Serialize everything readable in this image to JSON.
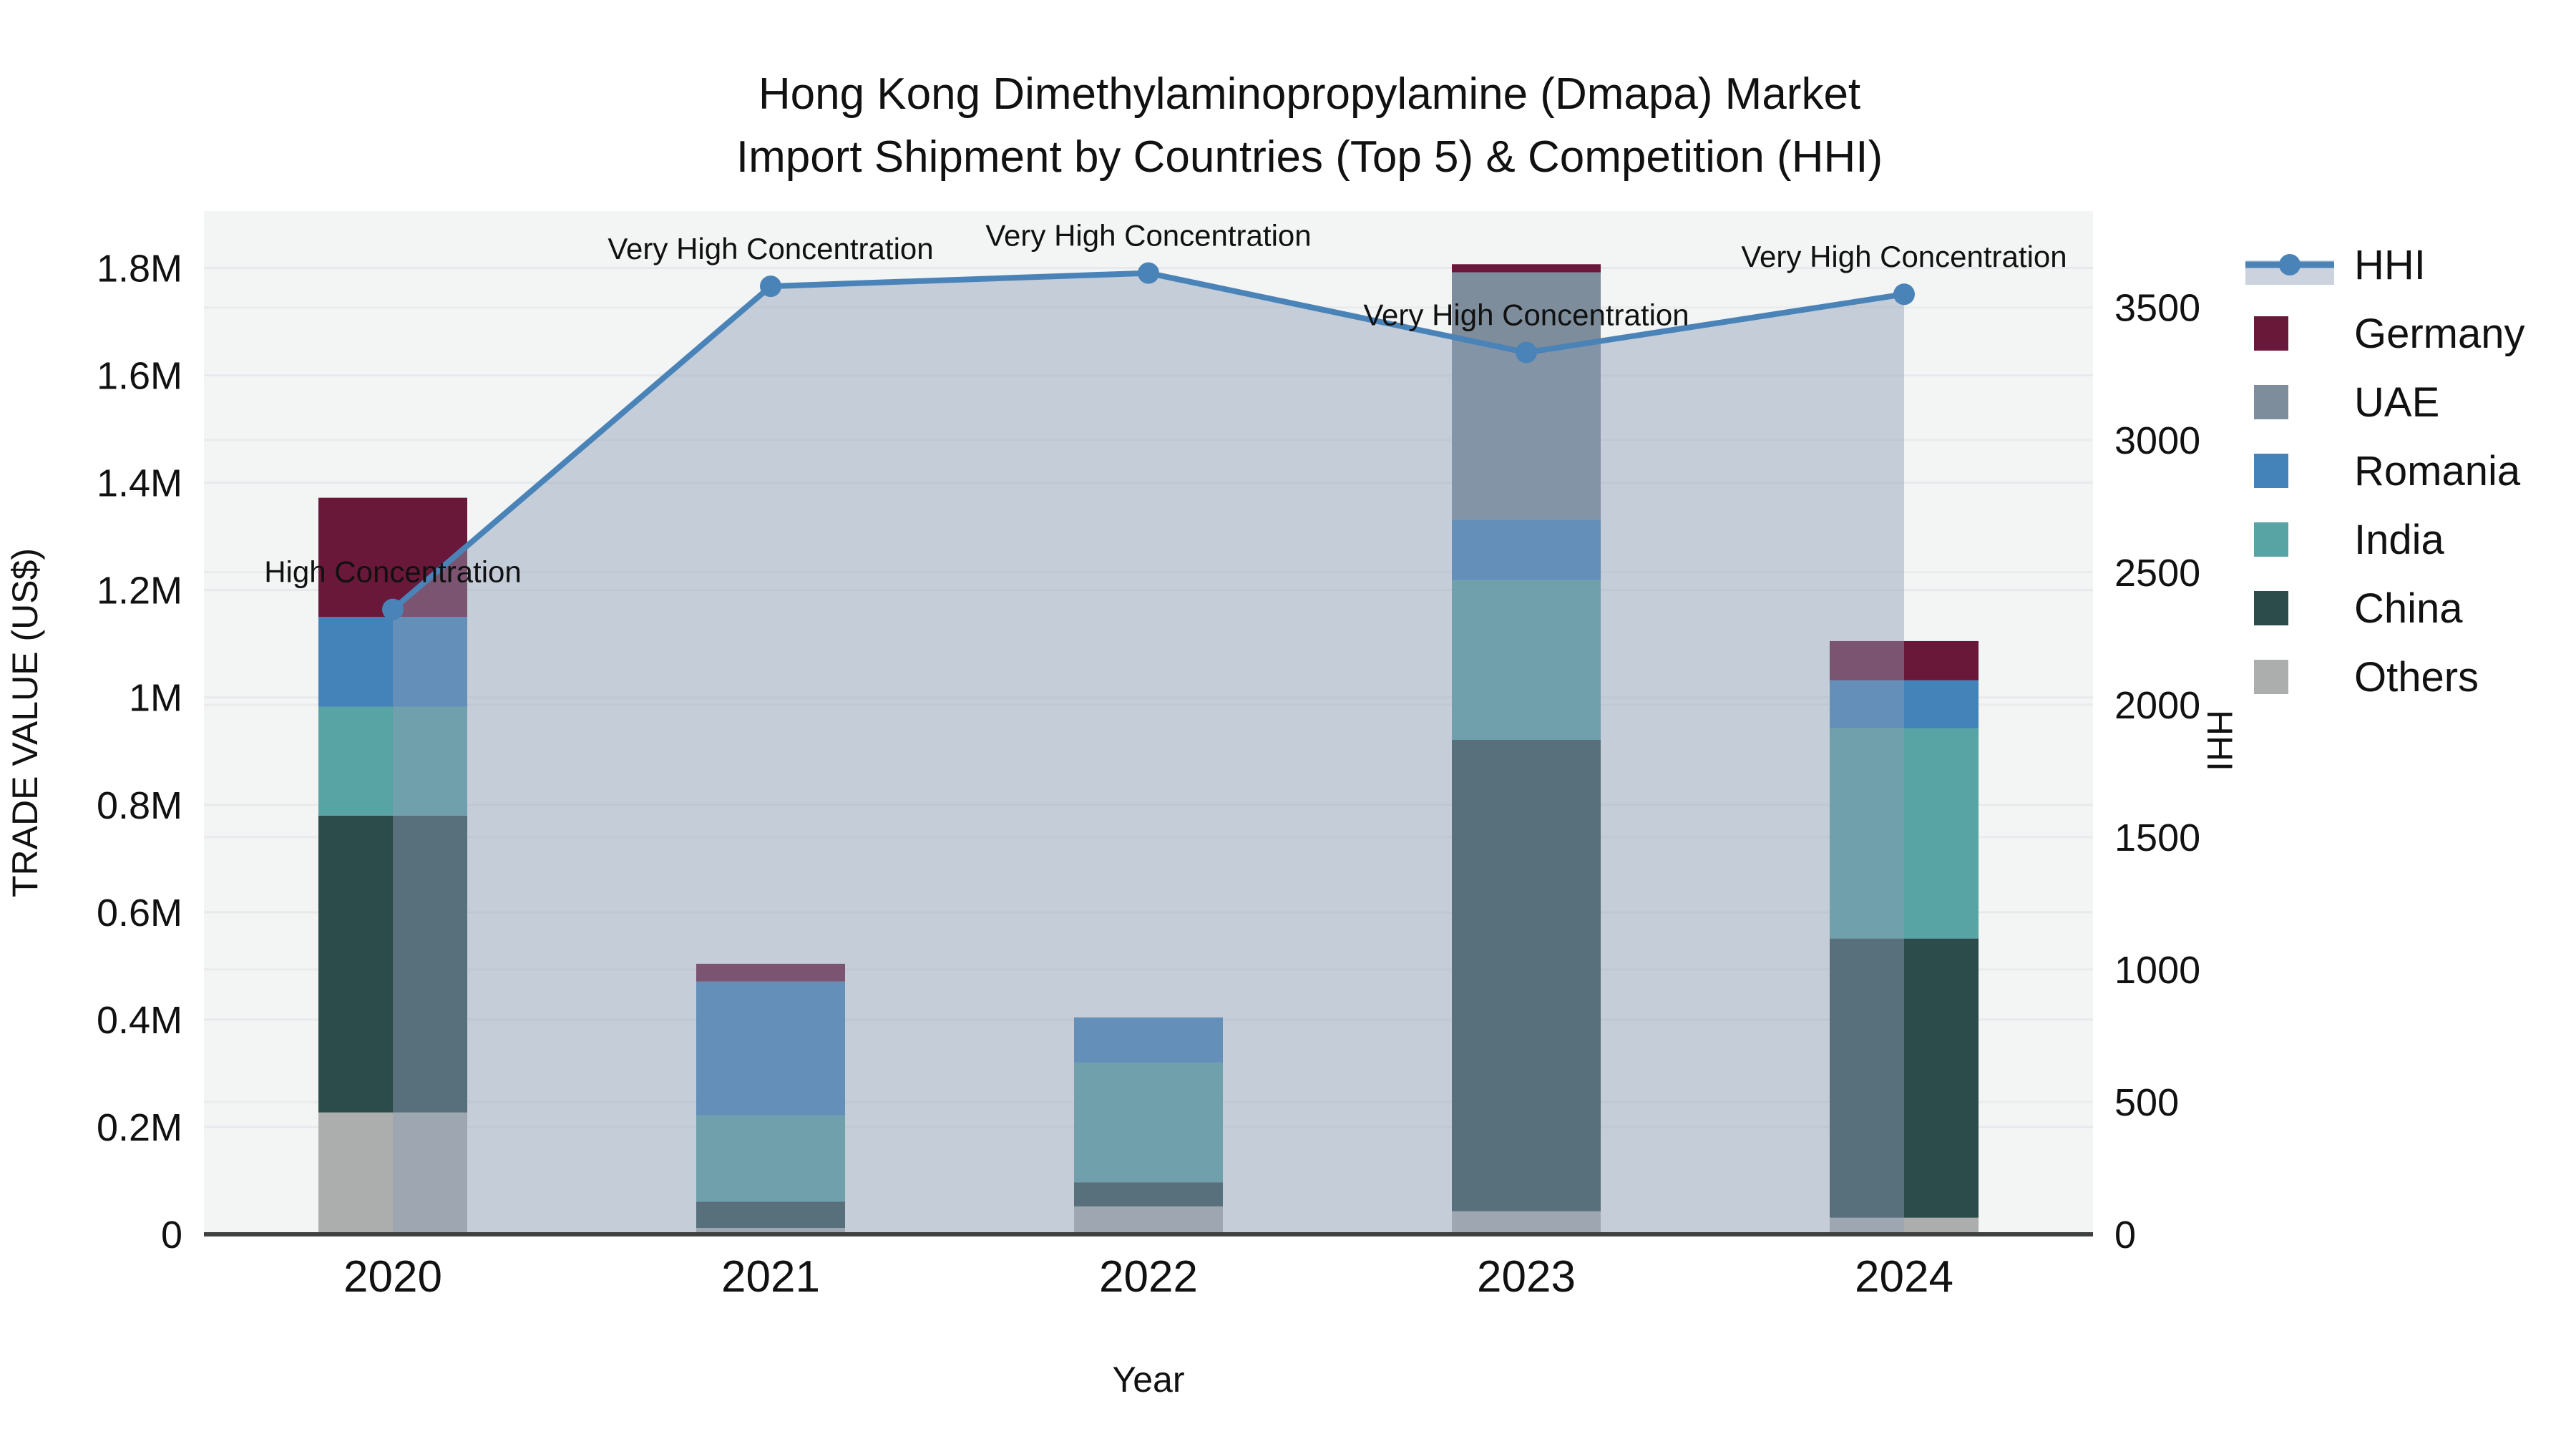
{
  "title": {
    "line1": "Hong Kong Dimethylaminopropylamine (Dmapa) Market",
    "line2": "Import Shipment by Countries (Top 5) & Competition (HHI)"
  },
  "axes": {
    "x_label": "Year",
    "y_label": "TRADE VALUE (US$)",
    "y2_label": "HHI",
    "y_ticks": [
      {
        "v": 0,
        "label": "0"
      },
      {
        "v": 200000,
        "label": "0.2M"
      },
      {
        "v": 400000,
        "label": "0.4M"
      },
      {
        "v": 600000,
        "label": "0.6M"
      },
      {
        "v": 800000,
        "label": "0.8M"
      },
      {
        "v": 1000000,
        "label": "1M"
      },
      {
        "v": 1200000,
        "label": "1.2M"
      },
      {
        "v": 1400000,
        "label": "1.4M"
      },
      {
        "v": 1600000,
        "label": "1.6M"
      },
      {
        "v": 1800000,
        "label": "1.8M"
      }
    ],
    "y2_ticks": [
      {
        "v": 0,
        "label": "0"
      },
      {
        "v": 500,
        "label": "500"
      },
      {
        "v": 1000,
        "label": "1000"
      },
      {
        "v": 1500,
        "label": "1500"
      },
      {
        "v": 2000,
        "label": "2000"
      },
      {
        "v": 2500,
        "label": "2500"
      },
      {
        "v": 3000,
        "label": "3000"
      },
      {
        "v": 3500,
        "label": "3500"
      }
    ]
  },
  "colors": {
    "hhi_line": "#4a83b8",
    "hhi_fill": "rgba(141,157,181,0.45)",
    "plot_bg": "#f3f4f4",
    "grid": "#e7e9ec",
    "axis_line": "#3f4040"
  },
  "legend": {
    "items": [
      {
        "name": "HHI",
        "type": "line",
        "color": "#4a83b8"
      },
      {
        "name": "Germany",
        "type": "patch",
        "color": "#6a1839"
      },
      {
        "name": "UAE",
        "type": "patch",
        "color": "#7d8d9c"
      },
      {
        "name": "Romania",
        "type": "patch",
        "color": "#4383ba"
      },
      {
        "name": "India",
        "type": "patch",
        "color": "#58a3a4"
      },
      {
        "name": "China",
        "type": "patch",
        "color": "#2c4b4b"
      },
      {
        "name": "Others",
        "type": "patch",
        "color": "#acadad"
      }
    ]
  },
  "chart_data": {
    "type": "bar",
    "subtype": "stacked-bars-with-line",
    "categories": [
      "2020",
      "2021",
      "2022",
      "2023",
      "2024"
    ],
    "series": [
      {
        "name": "Others",
        "color": "#acadad",
        "values": [
          227000,
          12000,
          52000,
          43000,
          31000
        ]
      },
      {
        "name": "China",
        "color": "#2c4b4b",
        "values": [
          553000,
          49000,
          45000,
          878000,
          520000
        ]
      },
      {
        "name": "India",
        "color": "#58a3a4",
        "values": [
          203000,
          161000,
          223000,
          298000,
          392000
        ]
      },
      {
        "name": "Romania",
        "color": "#4383ba",
        "values": [
          167000,
          249000,
          84000,
          112000,
          89000
        ]
      },
      {
        "name": "UAE",
        "color": "#7d8d9c",
        "values": [
          0,
          0,
          0,
          461000,
          0
        ]
      },
      {
        "name": "Germany",
        "color": "#6a1839",
        "values": [
          222000,
          33000,
          0,
          15000,
          73000
        ]
      }
    ],
    "line_series": {
      "name": "HHI",
      "values": [
        2360,
        3580,
        3630,
        3330,
        3550
      ],
      "axis": "y2"
    },
    "annotations": [
      {
        "category": "2020",
        "label": "High Concentration"
      },
      {
        "category": "2021",
        "label": "Very High Concentration"
      },
      {
        "category": "2022",
        "label": "Very High Concentration"
      },
      {
        "category": "2023",
        "label": "Very High Concentration"
      },
      {
        "category": "2024",
        "label": "Very High Concentration"
      }
    ],
    "title": "Hong Kong Dimethylaminopropylamine (Dmapa) Market Import Shipment by Countries (Top 5) & Competition (HHI)",
    "xlabel": "Year",
    "ylabel": "TRADE VALUE (US$)",
    "y2label": "HHI",
    "ylim": [
      0,
      1906000
    ],
    "y2lim": [
      0,
      3864
    ],
    "grid": true,
    "legend_position": "outside-right-top"
  }
}
